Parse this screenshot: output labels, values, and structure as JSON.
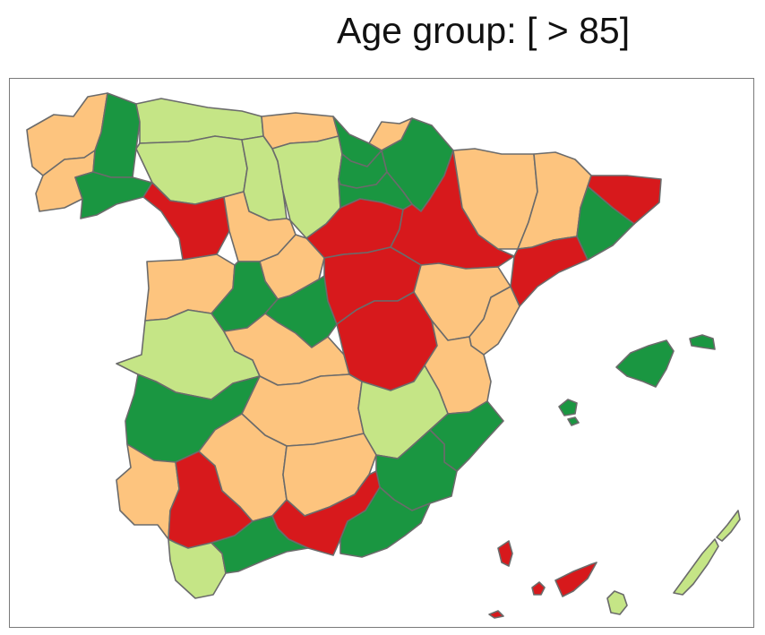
{
  "title": "Age group: [ > 85]",
  "palette": {
    "red": "#d7191c",
    "orange": "#fdc47e",
    "light_green": "#c5e586",
    "green": "#1a9641"
  },
  "provinces": [
    {
      "id": "a-coruna",
      "cls": "orange"
    },
    {
      "id": "pontevedra",
      "cls": "orange"
    },
    {
      "id": "lugo",
      "cls": "green"
    },
    {
      "id": "ourense",
      "cls": "green"
    },
    {
      "id": "asturias",
      "cls": "light_green"
    },
    {
      "id": "leon",
      "cls": "light_green"
    },
    {
      "id": "zamora",
      "cls": "red"
    },
    {
      "id": "cantabria",
      "cls": "orange"
    },
    {
      "id": "palencia",
      "cls": "light_green"
    },
    {
      "id": "burgos",
      "cls": "light_green"
    },
    {
      "id": "bizkaia",
      "cls": "green"
    },
    {
      "id": "gipuzkoa",
      "cls": "orange"
    },
    {
      "id": "alava",
      "cls": "green"
    },
    {
      "id": "navarra",
      "cls": "green"
    },
    {
      "id": "la-rioja",
      "cls": "green"
    },
    {
      "id": "valladolid",
      "cls": "orange"
    },
    {
      "id": "soria",
      "cls": "red"
    },
    {
      "id": "zaragoza",
      "cls": "red"
    },
    {
      "id": "huesca",
      "cls": "orange"
    },
    {
      "id": "lleida",
      "cls": "orange"
    },
    {
      "id": "girona",
      "cls": "red"
    },
    {
      "id": "barcelona",
      "cls": "green"
    },
    {
      "id": "tarragona",
      "cls": "red"
    },
    {
      "id": "salamanca",
      "cls": "orange"
    },
    {
      "id": "segovia",
      "cls": "orange"
    },
    {
      "id": "avila",
      "cls": "green"
    },
    {
      "id": "madrid",
      "cls": "green"
    },
    {
      "id": "guadalajara",
      "cls": "red"
    },
    {
      "id": "teruel",
      "cls": "orange"
    },
    {
      "id": "castellon",
      "cls": "orange"
    },
    {
      "id": "caceres",
      "cls": "light_green"
    },
    {
      "id": "toledo",
      "cls": "orange"
    },
    {
      "id": "cuenca",
      "cls": "red"
    },
    {
      "id": "valencia",
      "cls": "orange"
    },
    {
      "id": "badajoz",
      "cls": "green"
    },
    {
      "id": "ciudad-real",
      "cls": "orange"
    },
    {
      "id": "albacete",
      "cls": "light_green"
    },
    {
      "id": "alicante",
      "cls": "green"
    },
    {
      "id": "huelva",
      "cls": "orange"
    },
    {
      "id": "sevilla",
      "cls": "red"
    },
    {
      "id": "cordoba",
      "cls": "orange"
    },
    {
      "id": "jaen",
      "cls": "orange"
    },
    {
      "id": "murcia",
      "cls": "green"
    },
    {
      "id": "granada",
      "cls": "red"
    },
    {
      "id": "almeria",
      "cls": "green"
    },
    {
      "id": "cadiz",
      "cls": "light_green"
    },
    {
      "id": "malaga",
      "cls": "green"
    },
    {
      "id": "mallorca",
      "cls": "green"
    },
    {
      "id": "menorca",
      "cls": "green"
    },
    {
      "id": "ibiza",
      "cls": "green"
    },
    {
      "id": "formentera",
      "cls": "green"
    },
    {
      "id": "la-palma",
      "cls": "red"
    },
    {
      "id": "la-gomera",
      "cls": "red"
    },
    {
      "id": "tenerife",
      "cls": "red"
    },
    {
      "id": "el-hierro",
      "cls": "red"
    },
    {
      "id": "gran-canaria",
      "cls": "light_green"
    },
    {
      "id": "fuerteventura",
      "cls": "light_green"
    },
    {
      "id": "lanzarote",
      "cls": "light_green"
    }
  ]
}
